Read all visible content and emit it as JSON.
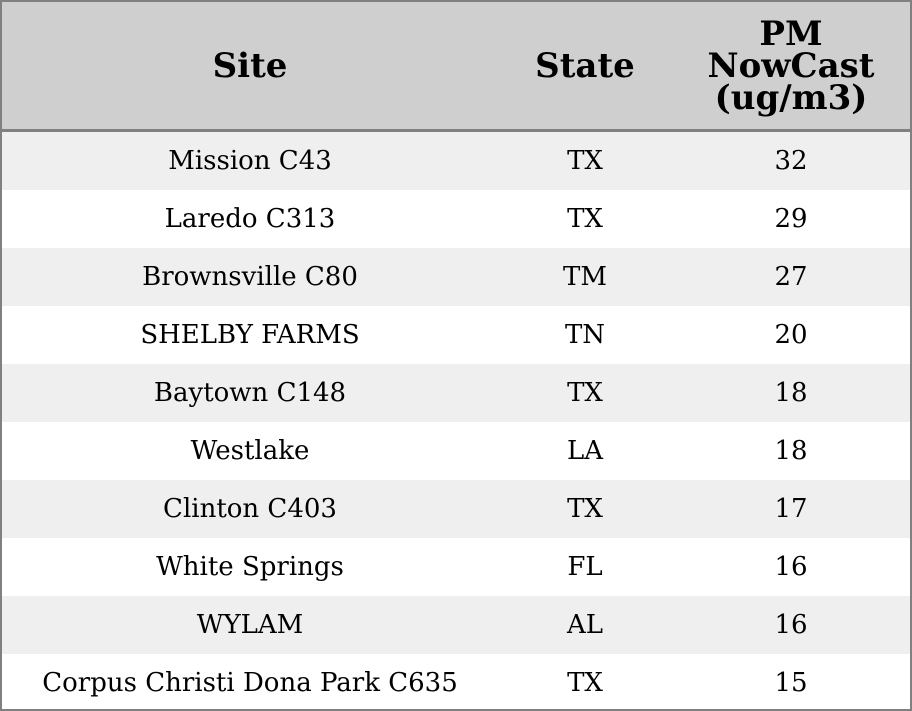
{
  "chart_data": {
    "type": "table",
    "columns": [
      "Site",
      "State",
      "PM NowCast (ug/m3)"
    ],
    "header": {
      "site": "Site",
      "state": "State",
      "pm_lines": [
        "PM",
        "NowCast",
        "(ug/m3)"
      ]
    },
    "rows": [
      {
        "site": "Mission C43",
        "state": "TX",
        "pm": "32"
      },
      {
        "site": "Laredo C313",
        "state": "TX",
        "pm": "29"
      },
      {
        "site": "Brownsville C80",
        "state": "TM",
        "pm": "27"
      },
      {
        "site": "SHELBY FARMS",
        "state": "TN",
        "pm": "20"
      },
      {
        "site": "Baytown C148",
        "state": "TX",
        "pm": "18"
      },
      {
        "site": "Westlake",
        "state": "LA",
        "pm": "18"
      },
      {
        "site": "Clinton C403",
        "state": "TX",
        "pm": "17"
      },
      {
        "site": "White Springs",
        "state": "FL",
        "pm": "16"
      },
      {
        "site": "WYLAM",
        "state": "AL",
        "pm": "16"
      },
      {
        "site": "Corpus Christi Dona Park C635",
        "state": "TX",
        "pm": "15"
      }
    ]
  },
  "colors": {
    "header_bg": "#cfcfcf",
    "row_alt_bg": "#efefef",
    "row_bg": "#ffffff",
    "border": "#808080"
  }
}
